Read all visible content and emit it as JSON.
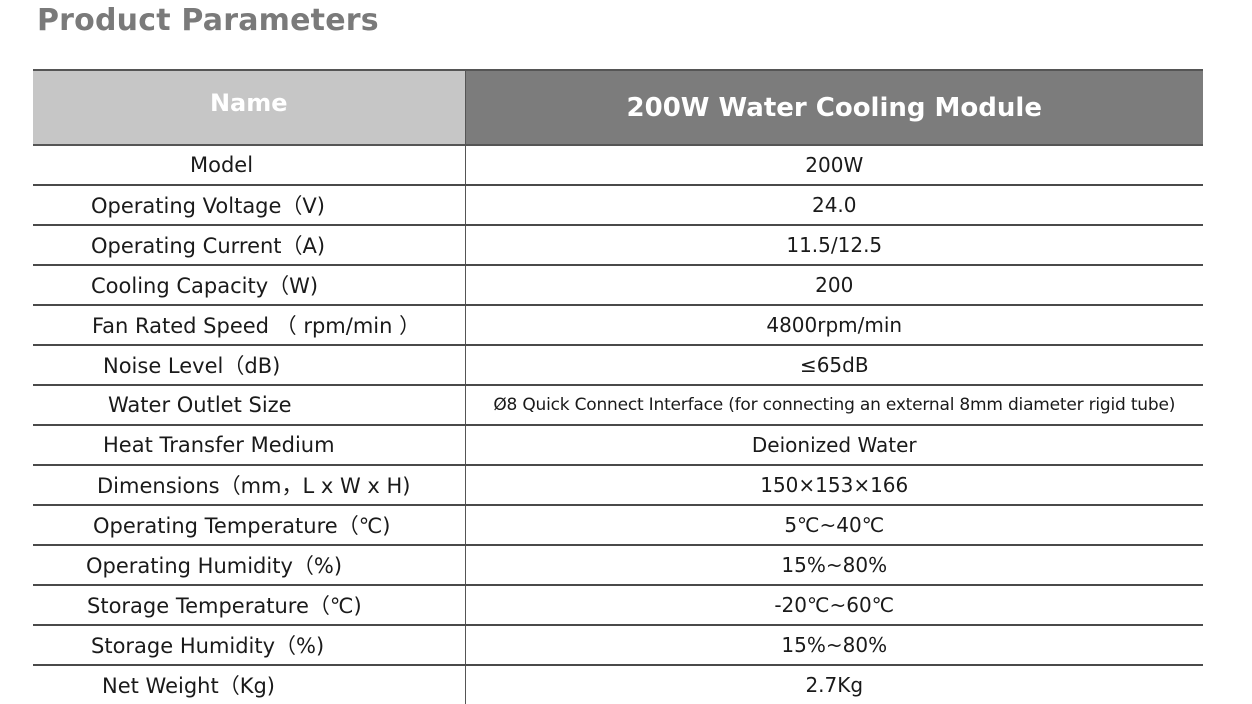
{
  "title": "Product Parameters",
  "header": {
    "name": "Name",
    "model": "200W Water Cooling Module"
  },
  "rows": [
    {
      "param": "Model",
      "value": "200W"
    },
    {
      "param": "Operating Voltage（V)",
      "value": "24.0"
    },
    {
      "param": "Operating Current（A)",
      "value": "11.5/12.5"
    },
    {
      "param": "Cooling Capacity（W)",
      "value": "200"
    },
    {
      "param": "Fan Rated Speed （ rpm/min ）",
      "value": "4800rpm/min"
    },
    {
      "param": "Noise Level（dB)",
      "value": "≤65dB"
    },
    {
      "param": "Water Outlet Size",
      "value": "Ø8 Quick Connect Interface (for connecting an external 8mm diameter rigid tube)"
    },
    {
      "param": "Heat Transfer Medium",
      "value": "Deionized Water"
    },
    {
      "param": "Dimensions（mm，L x W x H)",
      "value": "150×153×166"
    },
    {
      "param": "Operating Temperature（℃)",
      "value": "5℃~40℃"
    },
    {
      "param": "Operating Humidity（%)",
      "value": "15%~80%"
    },
    {
      "param": "Storage Temperature（℃)",
      "value": "-20℃~60℃"
    },
    {
      "param": "Storage Humidity（%)",
      "value": "15%~80%"
    },
    {
      "param": "Net Weight（Kg)",
      "value": "2.7Kg"
    }
  ]
}
